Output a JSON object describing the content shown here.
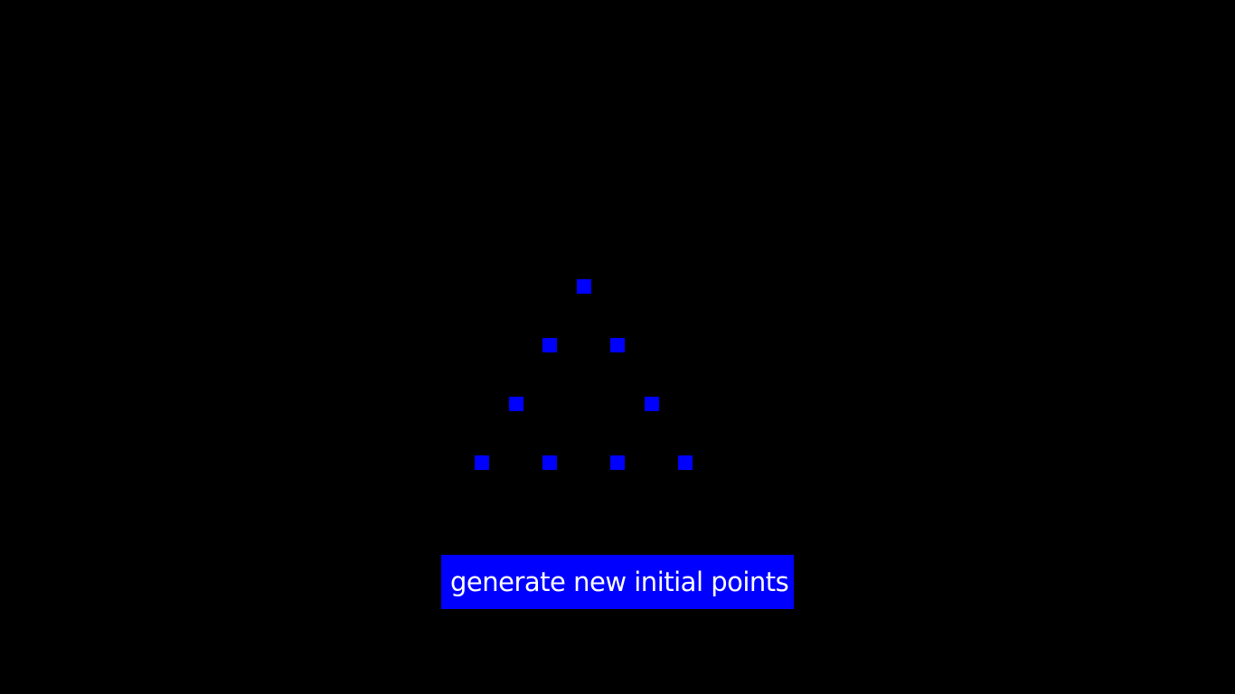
{
  "colors": {
    "background": "#000000",
    "point": "#0000ff",
    "button_background": "#0000ff",
    "button_text": "#ffffff"
  },
  "controls": {
    "generate_label": "generate new initial points"
  }
}
